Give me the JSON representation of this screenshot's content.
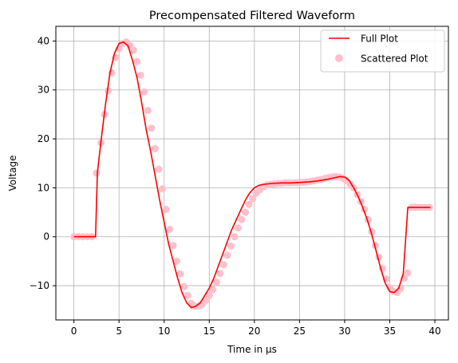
{
  "chart_data": {
    "type": "line",
    "title": "Precompensated Filtered Waveform",
    "xlabel": "Time in µs",
    "ylabel": "Voltage",
    "xlim": [
      -2,
      41.5
    ],
    "ylim": [
      -17,
      43
    ],
    "xticks": [
      0,
      5,
      10,
      15,
      20,
      25,
      30,
      35,
      40
    ],
    "yticks": [
      -10,
      0,
      10,
      20,
      30,
      40
    ],
    "grid": true,
    "legend_position": "top-right",
    "colors": {
      "line": "#ff0000",
      "scatter": "#ffc0cb",
      "grid": "#b0b0b0"
    },
    "series": [
      {
        "name": "Full Plot",
        "kind": "line",
        "x": [
          0,
          0.5,
          1,
          1.5,
          2,
          2.4,
          2.6,
          3,
          3.5,
          4,
          4.5,
          5,
          5.5,
          6,
          6.5,
          7,
          7.5,
          8,
          8.5,
          9,
          9.5,
          10,
          10.5,
          11,
          11.5,
          12,
          12.5,
          13,
          13.5,
          14,
          14.5,
          15,
          15.5,
          16,
          16.5,
          17,
          17.5,
          18,
          18.5,
          19,
          19.5,
          20,
          20.5,
          21,
          21.5,
          22,
          23,
          24,
          25,
          26,
          27,
          28,
          29,
          29.5,
          30,
          30.5,
          31,
          31.5,
          32,
          32.5,
          33,
          33.5,
          34,
          34.5,
          35,
          35.5,
          36,
          36.5,
          37,
          37.2,
          38,
          39,
          39.5
        ],
        "y": [
          0,
          0,
          0,
          0,
          0,
          0,
          13,
          19.5,
          27,
          33.5,
          37.5,
          39.5,
          39.8,
          39,
          36,
          32.5,
          27.5,
          22,
          17.5,
          12.5,
          7.5,
          3,
          -1.5,
          -5,
          -8.5,
          -11.5,
          -13.5,
          -14.5,
          -14.2,
          -13.5,
          -12,
          -10.5,
          -8.5,
          -6,
          -3.5,
          -1,
          1.5,
          3.5,
          5.5,
          7.5,
          9,
          10,
          10.5,
          10.7,
          10.8,
          10.9,
          11,
          11,
          11.1,
          11.2,
          11.4,
          11.7,
          12.1,
          12.3,
          12.2,
          11.5,
          10,
          8.2,
          6,
          3.5,
          0.5,
          -3,
          -6.5,
          -9.5,
          -11.2,
          -11.4,
          -10.5,
          -7.5,
          6,
          6,
          6,
          6,
          6
        ]
      },
      {
        "name": "Scattered Plot",
        "kind": "scatter",
        "x": [
          0,
          0.5,
          1,
          1.5,
          2,
          2.5,
          3,
          3.4,
          3.8,
          4.2,
          4.6,
          5,
          5.4,
          5.8,
          6.2,
          6.6,
          7,
          7.4,
          7.8,
          8.2,
          8.6,
          9,
          9.4,
          9.8,
          10.2,
          10.6,
          11,
          11.4,
          11.8,
          12.2,
          12.6,
          13,
          13.4,
          13.8,
          14.2,
          14.6,
          15,
          15.4,
          15.8,
          16.2,
          16.6,
          17,
          17.4,
          17.8,
          18.2,
          18.6,
          19,
          19.4,
          19.8,
          20.2,
          20.6,
          21,
          21.4,
          21.8,
          22.2,
          22.6,
          23,
          23.4,
          23.8,
          24.2,
          24.6,
          25,
          25.4,
          25.8,
          26.2,
          26.6,
          27,
          27.4,
          27.8,
          28.2,
          28.6,
          29,
          29.4,
          29.8,
          30.2,
          30.6,
          31,
          31.4,
          31.8,
          32.2,
          32.6,
          33,
          33.4,
          33.8,
          34.2,
          34.6,
          35,
          35.4,
          35.8,
          36.2,
          36.6,
          37,
          37.4,
          37.8,
          38.2,
          38.6,
          39,
          39.4
        ],
        "y": [
          0,
          0,
          0,
          0,
          0,
          13,
          19.2,
          25,
          29.8,
          33.5,
          36.6,
          38.4,
          39.5,
          39.8,
          39.1,
          38.1,
          35.8,
          33,
          29.6,
          25.8,
          22.2,
          18,
          13.8,
          9.8,
          5.6,
          1.5,
          -1.8,
          -5,
          -7.6,
          -10.2,
          -12,
          -13.6,
          -14.2,
          -14.2,
          -13.8,
          -13,
          -12,
          -10.8,
          -9.3,
          -7.5,
          -5.7,
          -3.8,
          -1.9,
          0,
          1.8,
          3.5,
          5,
          6.6,
          7.8,
          8.9,
          9.6,
          10.2,
          10.6,
          10.7,
          10.8,
          10.9,
          10.9,
          11,
          11,
          11,
          11,
          11.1,
          11.1,
          11.2,
          11.3,
          11.4,
          11.6,
          11.7,
          11.9,
          12.1,
          12.2,
          12.3,
          12.2,
          12,
          11.5,
          10.8,
          10,
          8.6,
          7.2,
          5.6,
          3.5,
          1,
          -1.8,
          -4.2,
          -6.5,
          -8.6,
          -10.4,
          -11.2,
          -11.4,
          -10.6,
          -8.5,
          -7.4,
          6,
          6,
          6,
          6,
          6,
          6
        ]
      }
    ]
  }
}
